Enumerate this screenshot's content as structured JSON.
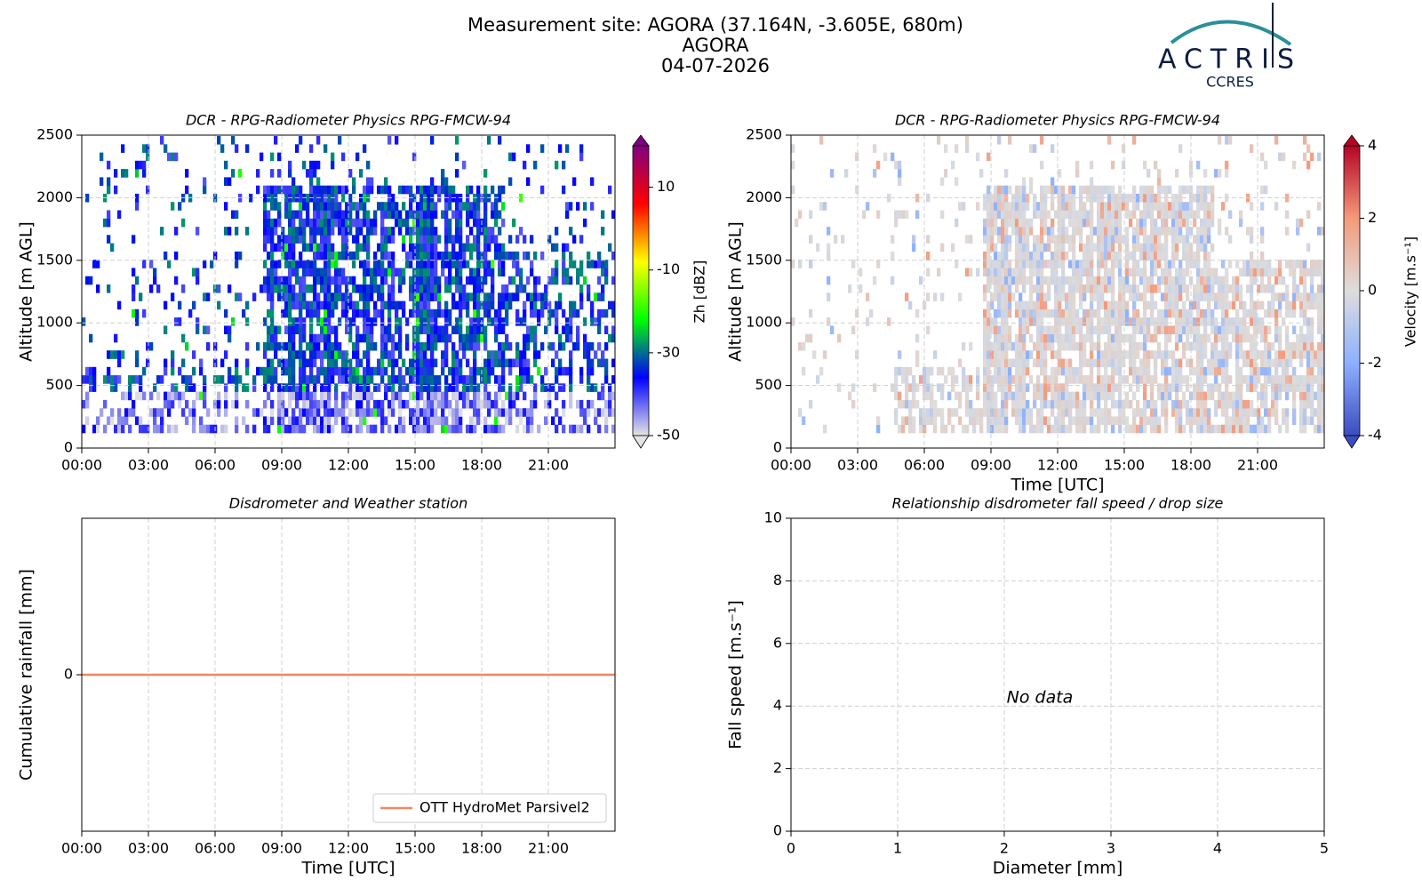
{
  "header": {
    "title": [
      "Measurement site: AGORA (37.164N, -3.605E, 680m)",
      "AGORA",
      "04-07-2026"
    ]
  },
  "logo": {
    "name": "ACTRIS",
    "subtitle": "CCRES"
  },
  "chart_data": [
    {
      "type": "heatmap",
      "title": "DCR - RPG-Radiometer Physics RPG-FMCW-94",
      "ylabel": "Altitude [m AGL]",
      "xlim": [
        0,
        24
      ],
      "xticks": [
        {
          "value": 0,
          "label": "00:00"
        },
        {
          "value": 3,
          "label": "03:00"
        },
        {
          "value": 6,
          "label": "06:00"
        },
        {
          "value": 9,
          "label": "09:00"
        },
        {
          "value": 12,
          "label": "12:00"
        },
        {
          "value": 15,
          "label": "15:00"
        },
        {
          "value": 18,
          "label": "18:00"
        },
        {
          "value": 21,
          "label": "21:00"
        }
      ],
      "ylim": [
        0,
        2500
      ],
      "yticks": [
        0,
        500,
        1000,
        1500,
        2000,
        2500
      ],
      "grid": true,
      "colorbar": {
        "label": "Zh [dBZ]",
        "lim": [
          -50,
          20
        ],
        "ticks": [
          10,
          -10,
          -30,
          -50
        ],
        "colors": [
          "#e4e4e4",
          "#0000ff",
          "#00ff00",
          "#ffff00",
          "#ff0000",
          "#800080"
        ]
      }
    },
    {
      "type": "heatmap",
      "title": "DCR - RPG-Radiometer Physics RPG-FMCW-94",
      "ylabel": "Altitude [m AGL]",
      "xlabel": "Time [UTC]",
      "xlim": [
        0,
        24
      ],
      "xticks": [
        {
          "value": 0,
          "label": "00:00"
        },
        {
          "value": 3,
          "label": "03:00"
        },
        {
          "value": 6,
          "label": "06:00"
        },
        {
          "value": 9,
          "label": "09:00"
        },
        {
          "value": 12,
          "label": "12:00"
        },
        {
          "value": 15,
          "label": "15:00"
        },
        {
          "value": 18,
          "label": "18:00"
        },
        {
          "value": 21,
          "label": "21:00"
        }
      ],
      "ylim": [
        0,
        2500
      ],
      "yticks": [
        0,
        500,
        1000,
        1500,
        2000,
        2500
      ],
      "grid": true,
      "colorbar": {
        "label": "Velocity [m.s⁻¹]",
        "lim": [
          -4,
          4
        ],
        "ticks": [
          4,
          2,
          0,
          -2,
          -4
        ],
        "colors": [
          "#3b4cc0",
          "#8db0fe",
          "#dddddd",
          "#f49a7b",
          "#b40426"
        ]
      }
    },
    {
      "type": "line",
      "title": "Disdrometer and Weather station",
      "ylabel": "Cumulative rainfall [mm]",
      "xlabel": "Time [UTC]",
      "xlim": [
        0,
        24
      ],
      "xticks": [
        {
          "value": 0,
          "label": "00:00"
        },
        {
          "value": 3,
          "label": "03:00"
        },
        {
          "value": 6,
          "label": "06:00"
        },
        {
          "value": 9,
          "label": "09:00"
        },
        {
          "value": 12,
          "label": "12:00"
        },
        {
          "value": 15,
          "label": "15:00"
        },
        {
          "value": 18,
          "label": "18:00"
        },
        {
          "value": 21,
          "label": "21:00"
        }
      ],
      "ylim": [
        -1,
        1
      ],
      "yticks": [
        0
      ],
      "grid": true,
      "legend": "lower right",
      "series": [
        {
          "name": "OTT HydroMet Parsivel2",
          "color": "#f0875f",
          "x": [
            0,
            24
          ],
          "values": [
            0,
            0
          ]
        }
      ]
    },
    {
      "type": "scatter",
      "title": "Relationship disdrometer fall speed / drop size",
      "ylabel": "Fall speed [m.s⁻¹]",
      "xlabel": "Diameter [mm]",
      "xlim": [
        0,
        5
      ],
      "xticks": [
        0,
        1,
        2,
        3,
        4,
        5
      ],
      "ylim": [
        0,
        10
      ],
      "yticks": [
        0,
        2,
        4,
        6,
        8,
        10
      ],
      "grid": true,
      "annotation": "No data"
    }
  ]
}
